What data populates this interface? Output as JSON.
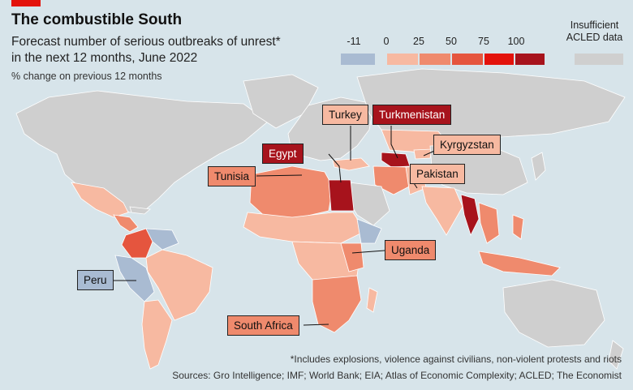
{
  "header": {
    "title": "The combustible South",
    "subtitle_line1": "Forecast number of serious outbreaks of unrest*",
    "subtitle_line2": "in the next 12 months, June 2022",
    "unit": "% change on previous 12 months"
  },
  "legend": {
    "ticks": [
      "-11",
      "0",
      "25",
      "50",
      "75",
      "100"
    ],
    "colors": [
      "#a9bbd2",
      "#f7b9a1",
      "#ef8a6d",
      "#e5553e",
      "#e3120b",
      "#a7131c"
    ],
    "insufficient_line1": "Insufficient",
    "insufficient_line2": "ACLED data",
    "insufficient_color": "#cfcfcf"
  },
  "labels": [
    {
      "text": "Turkey",
      "fill": "#f7b9a1",
      "dark": false
    },
    {
      "text": "Turkmenistan",
      "fill": "#a7131c",
      "dark": true
    },
    {
      "text": "Egypt",
      "fill": "#a7131c",
      "dark": true
    },
    {
      "text": "Kyrgyzstan",
      "fill": "#f7b9a1",
      "dark": false
    },
    {
      "text": "Tunisia",
      "fill": "#ef8a6d",
      "dark": false
    },
    {
      "text": "Pakistan",
      "fill": "#f7b9a1",
      "dark": false
    },
    {
      "text": "Uganda",
      "fill": "#ef8a6d",
      "dark": false
    },
    {
      "text": "Peru",
      "fill": "#a9bbd2",
      "dark": false
    },
    {
      "text": "South Africa",
      "fill": "#ef8a6d",
      "dark": false
    }
  ],
  "footer": {
    "footnote": "*Includes explosions, violence against civilians, non-violent protests and riots",
    "sources": "Sources: Gro Intelligence; IMF; World Bank; EIA; Atlas of Economic Complexity; ACLED; The Economist"
  }
}
